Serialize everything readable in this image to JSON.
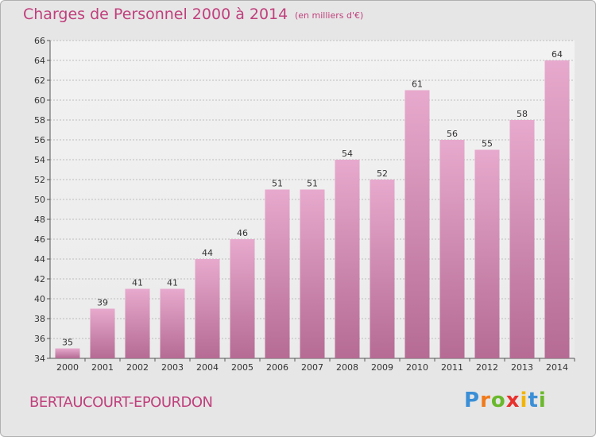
{
  "header": {
    "title": "Charges de Personnel 2000 à 2014",
    "subtitle": "(en milliers d'€)"
  },
  "footer": {
    "place": "BERTAUCOURT-EPOURDON",
    "logo": [
      "P",
      "r",
      "o",
      "x",
      "i",
      "t",
      "i"
    ],
    "logo_colors": [
      "#3a8fd6",
      "#f07a1a",
      "#6ab82c",
      "#e8302c",
      "#f2b400",
      "#3a8fd6",
      "#6ab82c"
    ]
  },
  "colors": {
    "bar_top": "#e7a9cd",
    "bar_bottom": "#b56b94",
    "accent": "#c0407c",
    "grid": "#bdbdbd"
  },
  "chart_data": {
    "type": "bar",
    "categories": [
      "2000",
      "2001",
      "2002",
      "2003",
      "2004",
      "2005",
      "2006",
      "2007",
      "2008",
      "2009",
      "2010",
      "2011",
      "2012",
      "2013",
      "2014"
    ],
    "values": [
      35,
      39,
      41,
      41,
      44,
      46,
      51,
      51,
      54,
      52,
      61,
      56,
      55,
      58,
      64
    ],
    "ylim": [
      34,
      66
    ],
    "yticks": [
      34,
      36,
      38,
      40,
      42,
      44,
      46,
      48,
      50,
      52,
      54,
      56,
      58,
      60,
      62,
      64,
      66
    ],
    "grid": true,
    "data_labels": true
  }
}
